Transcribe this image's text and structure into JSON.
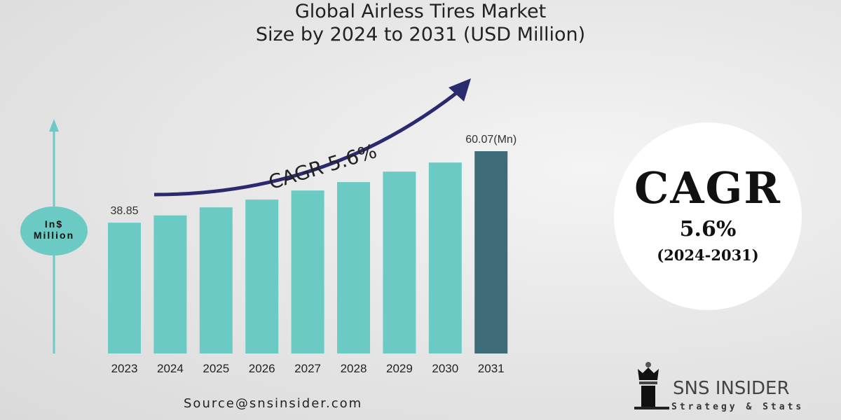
{
  "title_line1": "Global Airless Tires Market",
  "title_line2": "Size by 2024 to 2031 (USD Million)",
  "y_unit_line1": "In$",
  "y_unit_line2": "Million",
  "cagr_arrow_label": "CAGR  5.6%",
  "cagr_badge": {
    "title": "CAGR",
    "value": "5.6%",
    "period": "(2024-2031)"
  },
  "source": "Source@snsinsider.com",
  "logo": {
    "name": "SNS INSIDER",
    "tagline": "Strategy & Stats"
  },
  "colors": {
    "bar": "#6ccac4",
    "highlight_bar": "#3d6b77",
    "arrow": "#2a2a6e",
    "axis": "#6ccac4"
  },
  "chart_data": {
    "type": "bar",
    "title": "Global Airless Tires Market Size by 2024 to 2031 (USD Million)",
    "ylabel": "In$ Million",
    "categories": [
      "2023",
      "2024",
      "2025",
      "2026",
      "2027",
      "2028",
      "2029",
      "2030",
      "2031"
    ],
    "values": [
      38.85,
      41.0,
      43.4,
      45.7,
      48.4,
      50.9,
      54.0,
      56.7,
      60.07
    ],
    "data_labels": {
      "2023": "38.85",
      "2031": "60.07(Mn)"
    },
    "highlight": "2031",
    "ylim": [
      0,
      62
    ],
    "grid": false
  }
}
